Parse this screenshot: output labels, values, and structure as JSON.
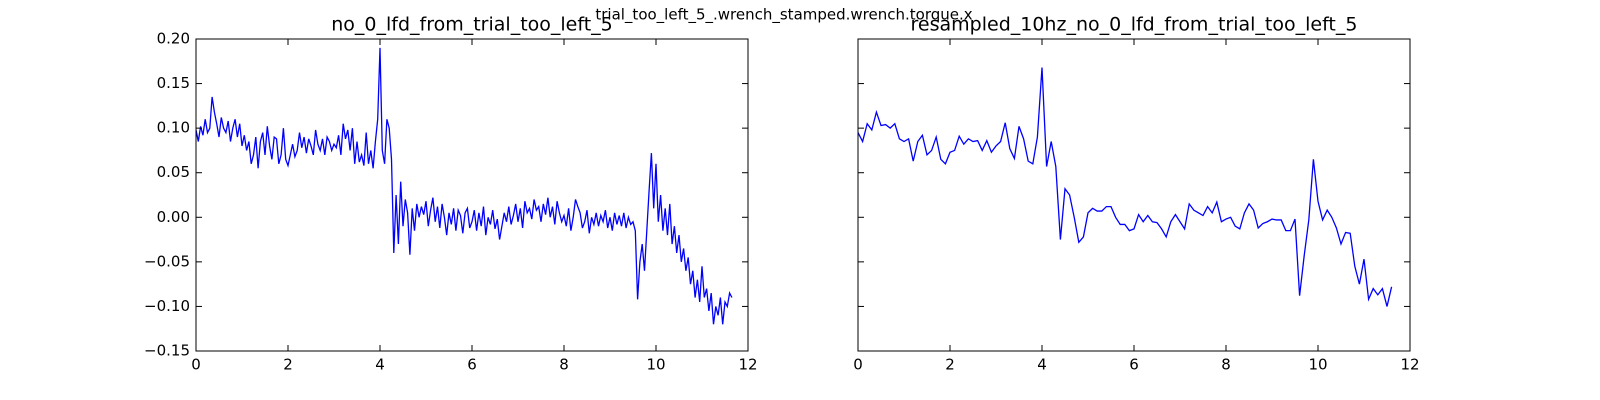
{
  "title": "trial_too_left_5_.wrench_stamped.wrench.torque.x",
  "chart_data": [
    {
      "type": "line",
      "title": "no_0_lfd_from_trial_too_left_5",
      "x": [
        0,
        0.05,
        0.1,
        0.15,
        0.2,
        0.25,
        0.3,
        0.35,
        0.4,
        0.45,
        0.5,
        0.55,
        0.6,
        0.65,
        0.7,
        0.75,
        0.8,
        0.85,
        0.9,
        0.95,
        1,
        1.05,
        1.1,
        1.15,
        1.2,
        1.25,
        1.3,
        1.35,
        1.4,
        1.45,
        1.5,
        1.55,
        1.6,
        1.65,
        1.7,
        1.75,
        1.8,
        1.85,
        1.9,
        1.95,
        2,
        2.05,
        2.1,
        2.15,
        2.2,
        2.25,
        2.3,
        2.35,
        2.4,
        2.45,
        2.5,
        2.55,
        2.6,
        2.65,
        2.7,
        2.75,
        2.8,
        2.85,
        2.9,
        2.95,
        3,
        3.05,
        3.1,
        3.15,
        3.2,
        3.25,
        3.3,
        3.35,
        3.4,
        3.45,
        3.5,
        3.55,
        3.6,
        3.65,
        3.7,
        3.75,
        3.8,
        3.85,
        3.9,
        3.95,
        4,
        4.05,
        4.1,
        4.15,
        4.2,
        4.25,
        4.3,
        4.35,
        4.4,
        4.45,
        4.5,
        4.55,
        4.6,
        4.65,
        4.7,
        4.75,
        4.8,
        4.85,
        4.9,
        4.95,
        5,
        5.05,
        5.1,
        5.15,
        5.2,
        5.25,
        5.3,
        5.35,
        5.4,
        5.45,
        5.5,
        5.55,
        5.6,
        5.65,
        5.7,
        5.75,
        5.8,
        5.85,
        5.9,
        5.95,
        6,
        6.05,
        6.1,
        6.15,
        6.2,
        6.25,
        6.3,
        6.35,
        6.4,
        6.45,
        6.5,
        6.55,
        6.6,
        6.65,
        6.7,
        6.75,
        6.8,
        6.85,
        6.9,
        6.95,
        7,
        7.05,
        7.1,
        7.15,
        7.2,
        7.25,
        7.3,
        7.35,
        7.4,
        7.45,
        7.5,
        7.55,
        7.6,
        7.65,
        7.7,
        7.75,
        7.8,
        7.85,
        7.9,
        7.95,
        8,
        8.05,
        8.1,
        8.15,
        8.2,
        8.25,
        8.3,
        8.35,
        8.4,
        8.45,
        8.5,
        8.55,
        8.6,
        8.65,
        8.7,
        8.75,
        8.8,
        8.85,
        8.9,
        8.95,
        9,
        9.05,
        9.1,
        9.15,
        9.2,
        9.25,
        9.3,
        9.35,
        9.4,
        9.45,
        9.5,
        9.55,
        9.6,
        9.65,
        9.7,
        9.75,
        9.8,
        9.85,
        9.9,
        9.95,
        10,
        10.05,
        10.1,
        10.15,
        10.2,
        10.25,
        10.3,
        10.35,
        10.4,
        10.45,
        10.5,
        10.55,
        10.6,
        10.65,
        10.7,
        10.75,
        10.8,
        10.85,
        10.9,
        10.95,
        11,
        11.05,
        11.1,
        11.15,
        11.2,
        11.25,
        11.3,
        11.35,
        11.4,
        11.45,
        11.5,
        11.55,
        11.6,
        11.65
      ],
      "series": [
        {
          "color": "#0000ff",
          "values": [
            0.098,
            0.085,
            0.102,
            0.092,
            0.11,
            0.095,
            0.1,
            0.135,
            0.118,
            0.105,
            0.09,
            0.112,
            0.1,
            0.095,
            0.108,
            0.085,
            0.1,
            0.11,
            0.09,
            0.105,
            0.08,
            0.092,
            0.075,
            0.085,
            0.06,
            0.07,
            0.09,
            0.055,
            0.085,
            0.095,
            0.07,
            0.102,
            0.08,
            0.065,
            0.09,
            0.088,
            0.06,
            0.07,
            0.1,
            0.065,
            0.058,
            0.07,
            0.082,
            0.068,
            0.075,
            0.095,
            0.078,
            0.09,
            0.072,
            0.088,
            0.08,
            0.07,
            0.098,
            0.082,
            0.075,
            0.088,
            0.07,
            0.09,
            0.085,
            0.075,
            0.082,
            0.078,
            0.092,
            0.07,
            0.105,
            0.088,
            0.098,
            0.075,
            0.1,
            0.06,
            0.085,
            0.062,
            0.07,
            0.058,
            0.095,
            0.06,
            0.075,
            0.055,
            0.085,
            0.11,
            0.19,
            0.075,
            0.06,
            0.11,
            0.1,
            0.065,
            -0.04,
            0.025,
            -0.03,
            0.04,
            -0.01,
            0.02,
            0.005,
            -0.042,
            0.01,
            -0.015,
            0.015,
            0.0,
            0.012,
            0.003,
            0.018,
            -0.01,
            0.008,
            0.022,
            -0.005,
            0.012,
            -0.012,
            0.015,
            0.0,
            -0.02,
            0.005,
            -0.008,
            0.01,
            -0.015,
            0.008,
            0.002,
            -0.018,
            0.005,
            0.01,
            -0.012,
            -0.005,
            0.008,
            -0.015,
            0.005,
            -0.01,
            0.012,
            -0.02,
            0.0,
            -0.008,
            0.008,
            -0.013,
            -0.002,
            -0.025,
            -0.01,
            0.005,
            -0.005,
            0.012,
            -0.008,
            0.002,
            0.015,
            -0.005,
            0.01,
            -0.012,
            0.018,
            0.005,
            0.01,
            -0.002,
            0.02,
            0.008,
            0.012,
            -0.005,
            0.015,
            0.003,
            0.022,
            0.0,
            0.012,
            -0.008,
            0.018,
            0.005,
            -0.005,
            0.002,
            -0.01,
            0.01,
            -0.015,
            0.0,
            0.02,
            0.012,
            0.005,
            -0.012,
            -0.005,
            0.008,
            -0.018,
            0.0,
            -0.008,
            0.005,
            -0.01,
            0.002,
            -0.005,
            0.008,
            -0.012,
            0.0,
            -0.015,
            0.005,
            -0.008,
            0.002,
            -0.01,
            0.005,
            -0.012,
            0.0,
            -0.008,
            -0.005,
            -0.015,
            -0.092,
            -0.05,
            -0.03,
            -0.06,
            -0.015,
            0.03,
            0.072,
            0.01,
            0.06,
            -0.005,
            0.025,
            -0.015,
            0.01,
            -0.02,
            0.015,
            -0.03,
            -0.01,
            -0.04,
            -0.02,
            -0.05,
            -0.035,
            -0.06,
            -0.045,
            -0.075,
            -0.06,
            -0.09,
            -0.07,
            -0.095,
            -0.055,
            -0.09,
            -0.08,
            -0.105,
            -0.085,
            -0.12,
            -0.1,
            -0.11,
            -0.09,
            -0.12,
            -0.095,
            -0.1,
            -0.085,
            -0.09
          ]
        }
      ],
      "xlim": [
        0,
        12
      ],
      "xticks": [
        0,
        2,
        4,
        6,
        8,
        10,
        12
      ],
      "ylim": [
        -0.15,
        0.2
      ],
      "yticks": [
        {
          "value": -0.15,
          "label": "−0.15"
        },
        {
          "value": -0.1,
          "label": "−0.10"
        },
        {
          "value": -0.05,
          "label": "−0.05"
        },
        {
          "value": 0,
          "label": "0.00"
        },
        {
          "value": 0.05,
          "label": "0.05"
        },
        {
          "value": 0.1,
          "label": "0.10"
        },
        {
          "value": 0.15,
          "label": "0.15"
        },
        {
          "value": 0.2,
          "label": "0.20"
        }
      ],
      "sharey": false
    },
    {
      "type": "line",
      "title": "resampled_10hz_no_0_lfd_from_trial_too_left_5",
      "x": [
        0,
        0.1,
        0.2,
        0.3,
        0.4,
        0.5,
        0.6,
        0.7,
        0.8,
        0.9,
        1,
        1.1,
        1.2,
        1.3,
        1.4,
        1.5,
        1.6,
        1.7,
        1.8,
        1.9,
        2,
        2.1,
        2.2,
        2.3,
        2.4,
        2.5,
        2.6,
        2.7,
        2.8,
        2.9,
        3,
        3.1,
        3.2,
        3.3,
        3.4,
        3.5,
        3.6,
        3.7,
        3.8,
        3.9,
        4,
        4.1,
        4.2,
        4.3,
        4.4,
        4.5,
        4.6,
        4.7,
        4.8,
        4.9,
        5,
        5.1,
        5.2,
        5.3,
        5.4,
        5.5,
        5.6,
        5.7,
        5.8,
        5.9,
        6,
        6.1,
        6.2,
        6.3,
        6.4,
        6.5,
        6.6,
        6.7,
        6.8,
        6.9,
        7,
        7.1,
        7.2,
        7.3,
        7.4,
        7.5,
        7.6,
        7.7,
        7.8,
        7.9,
        8,
        8.1,
        8.2,
        8.3,
        8.4,
        8.5,
        8.6,
        8.7,
        8.8,
        8.9,
        9,
        9.1,
        9.2,
        9.3,
        9.4,
        9.5,
        9.6,
        9.7,
        9.8,
        9.9,
        10,
        10.1,
        10.2,
        10.3,
        10.4,
        10.5,
        10.6,
        10.7,
        10.8,
        10.9,
        11,
        11.1,
        11.2,
        11.3,
        11.4,
        11.5,
        11.6
      ],
      "series": [
        {
          "color": "#0000ff",
          "values": [
            0.095,
            0.085,
            0.105,
            0.098,
            0.118,
            0.103,
            0.104,
            0.1,
            0.105,
            0.088,
            0.085,
            0.088,
            0.063,
            0.085,
            0.092,
            0.07,
            0.075,
            0.09,
            0.065,
            0.06,
            0.073,
            0.075,
            0.091,
            0.082,
            0.088,
            0.085,
            0.086,
            0.075,
            0.086,
            0.073,
            0.08,
            0.085,
            0.106,
            0.077,
            0.066,
            0.102,
            0.088,
            0.063,
            0.06,
            0.09,
            0.168,
            0.057,
            0.085,
            0.057,
            -0.025,
            0.032,
            0.025,
            0.0,
            -0.028,
            -0.022,
            0.005,
            0.01,
            0.007,
            0.007,
            0.012,
            0.012,
            0.0,
            -0.008,
            -0.008,
            -0.015,
            -0.013,
            0.003,
            -0.005,
            0.002,
            -0.005,
            -0.006,
            -0.013,
            -0.022,
            -0.005,
            0.003,
            -0.005,
            -0.013,
            0.015,
            0.008,
            0.005,
            0.002,
            0.012,
            0.005,
            0.017,
            -0.005,
            -0.002,
            0.0,
            -0.01,
            -0.013,
            0.005,
            0.015,
            0.008,
            -0.012,
            -0.007,
            -0.005,
            -0.002,
            -0.003,
            -0.003,
            -0.015,
            -0.015,
            -0.002,
            -0.088,
            -0.043,
            -0.003,
            0.065,
            0.018,
            -0.003,
            0.008,
            0.0,
            -0.012,
            -0.03,
            -0.017,
            -0.018,
            -0.055,
            -0.075,
            -0.047,
            -0.092,
            -0.08,
            -0.087,
            -0.08,
            -0.1,
            -0.078
          ]
        }
      ],
      "xlim": [
        0,
        12
      ],
      "xticks": [
        0,
        2,
        4,
        6,
        8,
        10,
        12
      ],
      "ylim": [
        -0.15,
        0.2
      ],
      "yticks": [
        -0.15,
        -0.1,
        -0.05,
        0,
        0.05,
        0.1,
        0.15,
        0.2
      ],
      "sharey": true
    }
  ]
}
